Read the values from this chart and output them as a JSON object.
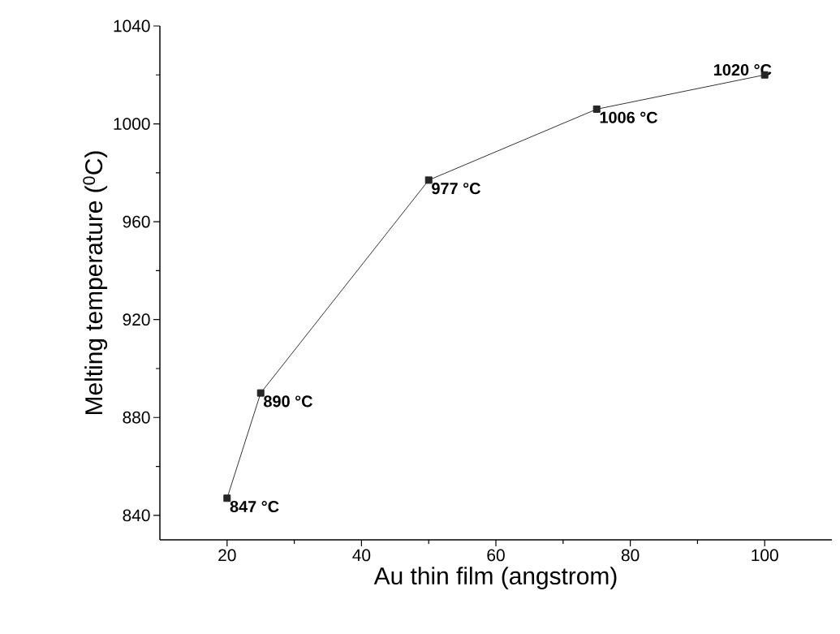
{
  "chart_data": {
    "type": "line",
    "xlabel": "Au thin film (angstrom)",
    "ylabel": "Melting temperature ($^{0}$C)",
    "x": [
      20,
      25,
      50,
      75,
      100
    ],
    "series": [
      {
        "color": "#333333",
        "values": [
          847,
          890,
          977,
          1006,
          1020
        ],
        "value_labels": [
          "847 °C",
          "890 °C",
          "977 °C",
          "1006 °C",
          "1020 °C"
        ]
      }
    ],
    "xlim": [
      10,
      110
    ],
    "xticks": [
      20,
      40,
      60,
      80,
      100
    ],
    "ylim": [
      830,
      1040
    ],
    "yticks": [
      840,
      880,
      920,
      960,
      1000,
      1040
    ],
    "marker": "square",
    "line_style": "solid",
    "grid": false
  }
}
